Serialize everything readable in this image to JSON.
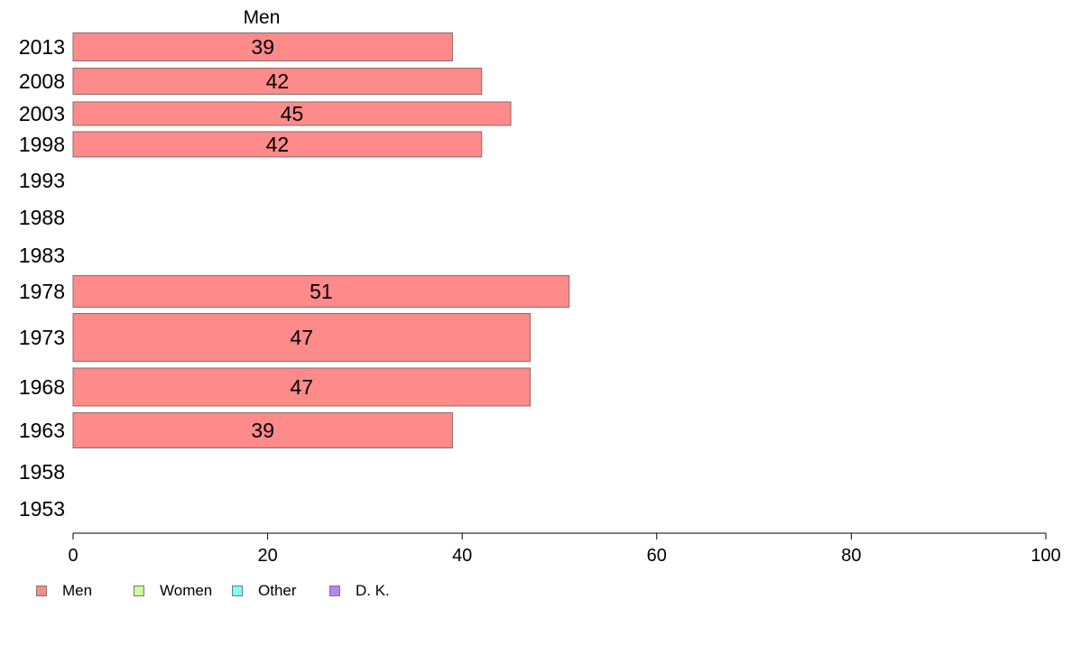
{
  "chart_data": {
    "type": "bar",
    "orientation": "horizontal",
    "stacked": true,
    "series_header": "Men",
    "categories": [
      "2013",
      "2008",
      "2003",
      "1998",
      "1993",
      "1988",
      "1983",
      "1978",
      "1973",
      "1968",
      "1963",
      "1958",
      "1953"
    ],
    "series": [
      {
        "name": "Men",
        "color": "#ff8a8a",
        "values": [
          39,
          42,
          45,
          42,
          null,
          null,
          null,
          51,
          47,
          47,
          39,
          null,
          null
        ]
      },
      {
        "name": "Women",
        "color": "#ccff99",
        "values": [
          null,
          null,
          null,
          null,
          null,
          null,
          null,
          null,
          null,
          null,
          null,
          null,
          null
        ]
      },
      {
        "name": "Other",
        "color": "#80ffff",
        "values": [
          null,
          null,
          null,
          null,
          null,
          null,
          null,
          null,
          null,
          null,
          null,
          null,
          null
        ]
      },
      {
        "name": "D. K.",
        "color": "#b388ff",
        "values": [
          null,
          null,
          null,
          null,
          null,
          null,
          null,
          null,
          null,
          null,
          null,
          null,
          null
        ]
      }
    ],
    "data_labels": [
      "39",
      "42",
      "45",
      "42",
      "",
      "",
      "",
      "51",
      "47",
      "47",
      "39",
      "",
      ""
    ],
    "xlim": [
      0,
      100
    ],
    "xticks": [
      0,
      20,
      40,
      60,
      80,
      100
    ],
    "xlabel": "",
    "ylabel": "",
    "grid": false,
    "legend_position": "bottom-left"
  },
  "legend": {
    "items": [
      {
        "label": "Men",
        "color": "#ff8a8a"
      },
      {
        "label": "Women",
        "color": "#ccff99"
      },
      {
        "label": "Other",
        "color": "#80ffff"
      },
      {
        "label": "D. K.",
        "color": "#b388ff"
      }
    ]
  }
}
